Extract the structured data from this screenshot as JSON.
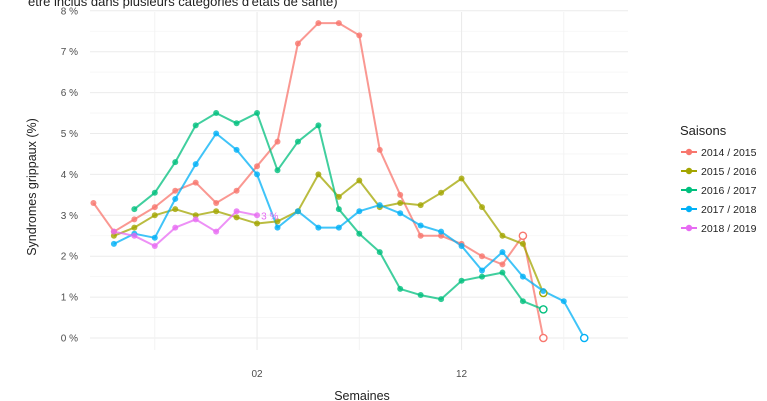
{
  "caption": "être inclus dans plusieurs catégories d'états de santé)",
  "chart_data": {
    "type": "line",
    "title": "",
    "xlabel": "Semaines",
    "ylabel": "Syndromes grippaux (%)",
    "x": [
      1,
      2,
      3,
      4,
      5,
      6,
      7,
      8,
      9,
      10,
      11,
      12,
      13,
      14,
      15,
      16,
      17,
      18,
      19,
      20,
      21,
      22,
      23,
      24,
      25
    ],
    "xticks": [
      {
        "x": 9,
        "label": "02"
      },
      {
        "x": 19,
        "label": "12"
      }
    ],
    "ylim": [
      0,
      8
    ],
    "yticks": [
      0,
      1,
      2,
      3,
      4,
      5,
      6,
      7,
      8
    ],
    "ytick_labels": [
      "0 %",
      "1 %",
      "2 %",
      "3 %",
      "4 %",
      "5 %",
      "6 %",
      "7 %",
      "8 %"
    ],
    "grid": true,
    "legend": {
      "title": "Saisons",
      "position": "right"
    },
    "series": [
      {
        "name": "2014 / 2015",
        "color": "#F8766D",
        "points": [
          [
            1,
            3.3
          ],
          [
            2,
            2.6
          ],
          [
            3,
            2.9
          ],
          [
            4,
            3.2
          ],
          [
            5,
            3.6
          ],
          [
            6,
            3.8
          ],
          [
            7,
            3.3
          ],
          [
            8,
            3.6
          ],
          [
            9,
            4.2
          ],
          [
            10,
            4.8
          ],
          [
            11,
            7.2
          ],
          [
            12,
            7.7
          ],
          [
            13,
            7.7
          ],
          [
            14,
            7.4
          ],
          [
            15,
            4.6
          ],
          [
            16,
            3.5
          ],
          [
            17,
            2.5
          ],
          [
            18,
            2.5
          ],
          [
            19,
            2.3
          ],
          [
            20,
            2.0
          ],
          [
            21,
            1.8
          ],
          [
            22,
            2.5
          ],
          [
            23,
            0.0
          ]
        ]
      },
      {
        "name": "2015 / 2016",
        "color": "#A3A500",
        "points": [
          [
            2,
            2.5
          ],
          [
            3,
            2.7
          ],
          [
            4,
            3.0
          ],
          [
            5,
            3.15
          ],
          [
            6,
            3.0
          ],
          [
            7,
            3.1
          ],
          [
            8,
            2.95
          ],
          [
            9,
            2.8
          ],
          [
            10,
            2.85
          ],
          [
            11,
            3.1
          ],
          [
            12,
            4.0
          ],
          [
            13,
            3.45
          ],
          [
            14,
            3.85
          ],
          [
            15,
            3.2
          ],
          [
            16,
            3.3
          ],
          [
            17,
            3.25
          ],
          [
            18,
            3.55
          ],
          [
            19,
            3.9
          ],
          [
            20,
            3.2
          ],
          [
            21,
            2.5
          ],
          [
            22,
            2.3
          ],
          [
            23,
            1.1
          ]
        ]
      },
      {
        "name": "2016 / 2017",
        "color": "#00BF7D",
        "points": [
          [
            3,
            3.15
          ],
          [
            4,
            3.55
          ],
          [
            5,
            4.3
          ],
          [
            6,
            5.2
          ],
          [
            7,
            5.5
          ],
          [
            8,
            5.25
          ],
          [
            9,
            5.5
          ],
          [
            10,
            4.1
          ],
          [
            11,
            4.8
          ],
          [
            12,
            5.2
          ],
          [
            13,
            3.15
          ],
          [
            14,
            2.55
          ],
          [
            15,
            2.1
          ],
          [
            16,
            1.2
          ],
          [
            17,
            1.05
          ],
          [
            18,
            0.95
          ],
          [
            19,
            1.4
          ],
          [
            20,
            1.5
          ],
          [
            21,
            1.6
          ],
          [
            22,
            0.9
          ],
          [
            23,
            0.7
          ]
        ]
      },
      {
        "name": "2017 / 2018",
        "color": "#00B0F6",
        "points": [
          [
            2,
            2.3
          ],
          [
            3,
            2.55
          ],
          [
            4,
            2.45
          ],
          [
            5,
            3.4
          ],
          [
            6,
            4.25
          ],
          [
            7,
            5.0
          ],
          [
            8,
            4.6
          ],
          [
            9,
            4.0
          ],
          [
            10,
            2.7
          ],
          [
            11,
            3.1
          ],
          [
            12,
            2.7
          ],
          [
            13,
            2.7
          ],
          [
            14,
            3.1
          ],
          [
            15,
            3.25
          ],
          [
            16,
            3.05
          ],
          [
            17,
            2.75
          ],
          [
            18,
            2.6
          ],
          [
            19,
            2.25
          ],
          [
            20,
            1.65
          ],
          [
            21,
            2.1
          ],
          [
            22,
            1.5
          ],
          [
            23,
            1.15
          ],
          [
            24,
            0.9
          ],
          [
            25,
            0.0
          ]
        ]
      },
      {
        "name": "2018 / 2019",
        "color": "#E76BF3",
        "points": [
          [
            2,
            2.6
          ],
          [
            3,
            2.5
          ],
          [
            4,
            2.25
          ],
          [
            5,
            2.7
          ],
          [
            6,
            2.9
          ],
          [
            7,
            2.6
          ],
          [
            8,
            3.1
          ],
          [
            9,
            3.0
          ]
        ]
      }
    ],
    "annotations": [
      {
        "text": "3 %",
        "x": 9.2,
        "y": 3.0,
        "color": "#E76BF3"
      }
    ]
  }
}
